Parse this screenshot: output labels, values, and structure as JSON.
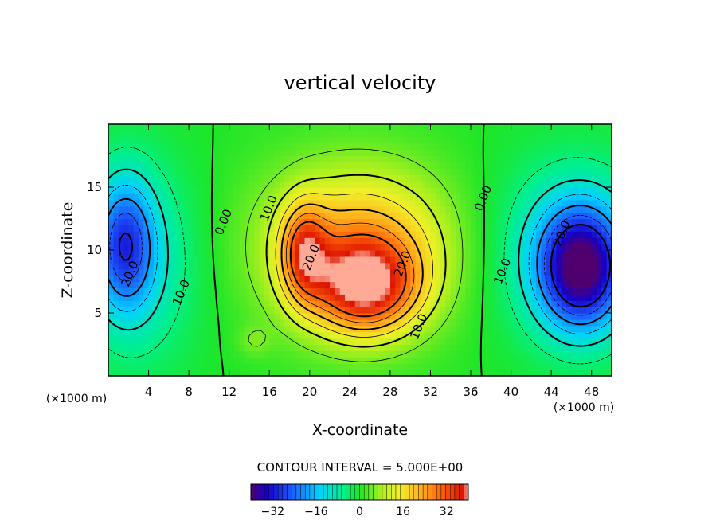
{
  "chart_data": {
    "type": "heatmap",
    "title": "vertical velocity",
    "xlabel": "X-coordinate",
    "ylabel": "Z-coordinate",
    "x_unit_left": "(×1000 m)",
    "x_unit_right": "(×1000 m)",
    "xlim": [
      0,
      50
    ],
    "ylim": [
      0,
      20
    ],
    "xticks": [
      4,
      8,
      12,
      16,
      20,
      24,
      28,
      32,
      36,
      40,
      44,
      48
    ],
    "yticks": [
      5,
      10,
      15
    ],
    "contour_interval_text": "CONTOUR INTERVAL = 5.000E+00",
    "contour_interval": 5,
    "colorbar": {
      "range": [
        -40,
        40
      ],
      "ticks": [
        -32,
        -16,
        0,
        16,
        32
      ]
    },
    "contour_labels": [
      {
        "text": "10.0",
        "x": 16.3,
        "y": 13.2
      },
      {
        "text": "0.00",
        "x": 11.8,
        "y": 12.1
      },
      {
        "text": "20.0",
        "x": 20.5,
        "y": 9.3
      },
      {
        "text": "20.0",
        "x": 29.6,
        "y": 8.8
      },
      {
        "text": "10.0",
        "x": 31.2,
        "y": 3.8
      },
      {
        "text": "0.00",
        "x": 37.6,
        "y": 14.0
      },
      {
        "text": "10.0",
        "x": 39.5,
        "y": 8.2
      },
      {
        "text": "20.0",
        "x": 45.4,
        "y": 11.2
      },
      {
        "text": "20.0",
        "x": 2.5,
        "y": 8.0
      },
      {
        "text": "10.0",
        "x": 7.6,
        "y": 6.5
      }
    ],
    "features": [
      {
        "kind": "max",
        "value": 35,
        "x": 25,
        "y": 6.8
      },
      {
        "kind": "max",
        "value": 27,
        "x": 19.2,
        "y": 10
      },
      {
        "kind": "min",
        "value": -33,
        "x": 47,
        "y": 8.5
      },
      {
        "kind": "min",
        "value": -22,
        "x": 1.5,
        "y": 10.5
      }
    ]
  }
}
